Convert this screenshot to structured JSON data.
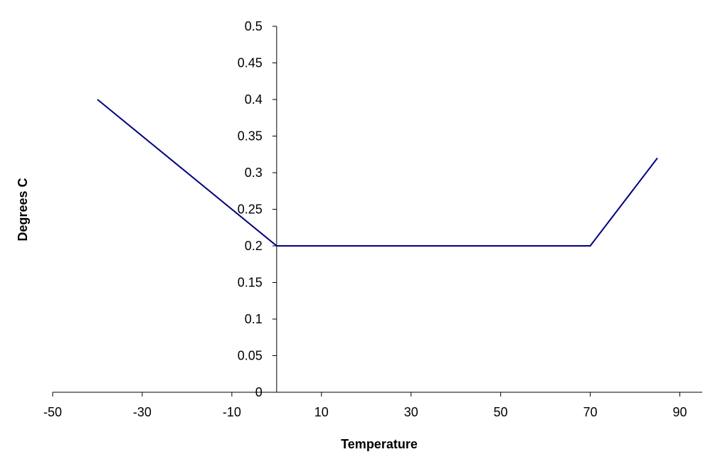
{
  "chart_data": {
    "type": "line",
    "title": "",
    "xlabel": "Temperature",
    "ylabel": "Degrees C",
    "xlim": [
      -50,
      95
    ],
    "ylim": [
      0,
      0.5
    ],
    "x_ticks": [
      -50,
      -30,
      -10,
      10,
      30,
      50,
      70,
      90
    ],
    "x_tick_labels": [
      "-50",
      "-30",
      "-10",
      "10",
      "30",
      "50",
      "70",
      "90"
    ],
    "y_ticks": [
      0,
      0.05,
      0.1,
      0.15,
      0.2,
      0.25,
      0.3,
      0.35,
      0.4,
      0.45,
      0.5
    ],
    "y_tick_labels": [
      "0",
      "0.05",
      "0.1",
      "0.15",
      "0.2",
      "0.25",
      "0.3",
      "0.35",
      "0.4",
      "0.45",
      "0.5"
    ],
    "grid": false,
    "legend": "none",
    "series": [
      {
        "name": "series-1",
        "color": "#000080",
        "x": [
          -40,
          0,
          70,
          85
        ],
        "y": [
          0.4,
          0.2,
          0.2,
          0.32
        ]
      }
    ]
  }
}
